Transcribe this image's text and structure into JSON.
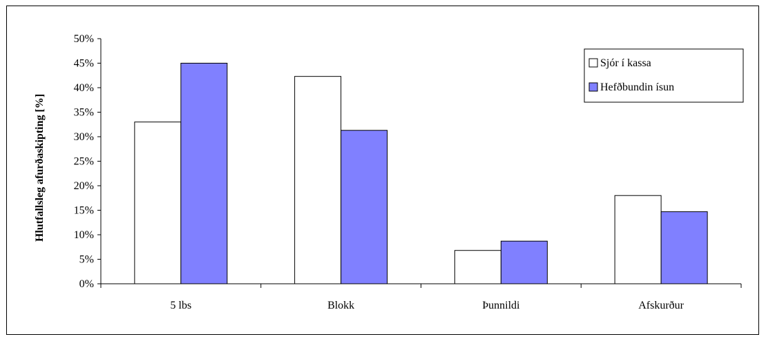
{
  "chart_data": {
    "type": "bar",
    "title": "",
    "xlabel": "",
    "ylabel": "Hlutfallsleg afurðaskipting [%]",
    "ylim": [
      0,
      50
    ],
    "yticks": [
      "0%",
      "5%",
      "10%",
      "15%",
      "20%",
      "25%",
      "30%",
      "35%",
      "40%",
      "45%",
      "50%"
    ],
    "grid": false,
    "legend": "top-right",
    "categories": [
      "5 lbs",
      "Blokk",
      "Þunnildi",
      "Afskurður"
    ],
    "series": [
      {
        "name": "Sjór í kassa",
        "color": "#ffffff",
        "values": [
          33,
          42.3,
          6.8,
          18
        ]
      },
      {
        "name": "Hefðbundin ísun",
        "color": "#8080ff",
        "values": [
          45,
          31.3,
          8.7,
          14.7
        ]
      }
    ]
  }
}
